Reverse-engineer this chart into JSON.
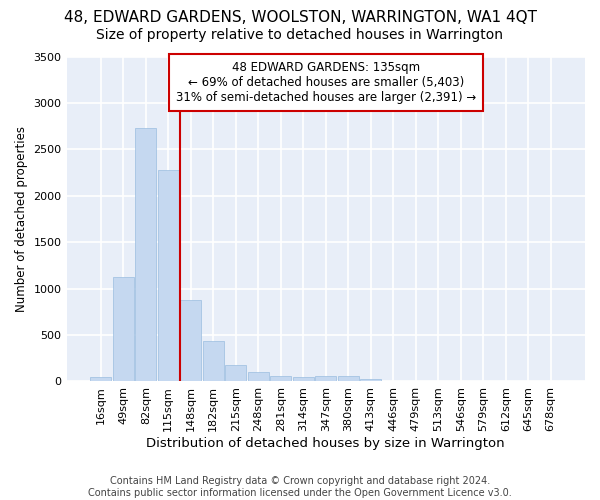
{
  "title": "48, EDWARD GARDENS, WOOLSTON, WARRINGTON, WA1 4QT",
  "subtitle": "Size of property relative to detached houses in Warrington",
  "xlabel": "Distribution of detached houses by size in Warrington",
  "ylabel": "Number of detached properties",
  "categories": [
    "16sqm",
    "49sqm",
    "82sqm",
    "115sqm",
    "148sqm",
    "182sqm",
    "215sqm",
    "248sqm",
    "281sqm",
    "314sqm",
    "347sqm",
    "380sqm",
    "413sqm",
    "446sqm",
    "479sqm",
    "513sqm",
    "546sqm",
    "579sqm",
    "612sqm",
    "645sqm",
    "678sqm"
  ],
  "values": [
    50,
    1120,
    2730,
    2280,
    880,
    440,
    175,
    100,
    55,
    45,
    55,
    55,
    25,
    2,
    2,
    0,
    0,
    0,
    0,
    0,
    0
  ],
  "bar_color": "#c5d8f0",
  "bar_edgecolor": "#9bbde0",
  "background_color": "#e8eef8",
  "grid_color": "#ffffff",
  "annotation_box_text": "48 EDWARD GARDENS: 135sqm\n← 69% of detached houses are smaller (5,403)\n31% of semi-detached houses are larger (2,391) →",
  "annotation_box_color": "#ffffff",
  "annotation_box_edgecolor": "#cc0000",
  "property_line_color": "#cc0000",
  "ylim": [
    0,
    3500
  ],
  "yticks": [
    0,
    500,
    1000,
    1500,
    2000,
    2500,
    3000,
    3500
  ],
  "footnote": "Contains HM Land Registry data © Crown copyright and database right 2024.\nContains public sector information licensed under the Open Government Licence v3.0.",
  "title_fontsize": 11,
  "subtitle_fontsize": 10,
  "xlabel_fontsize": 9.5,
  "ylabel_fontsize": 8.5,
  "tick_fontsize": 8,
  "annotation_fontsize": 8.5,
  "footnote_fontsize": 7
}
